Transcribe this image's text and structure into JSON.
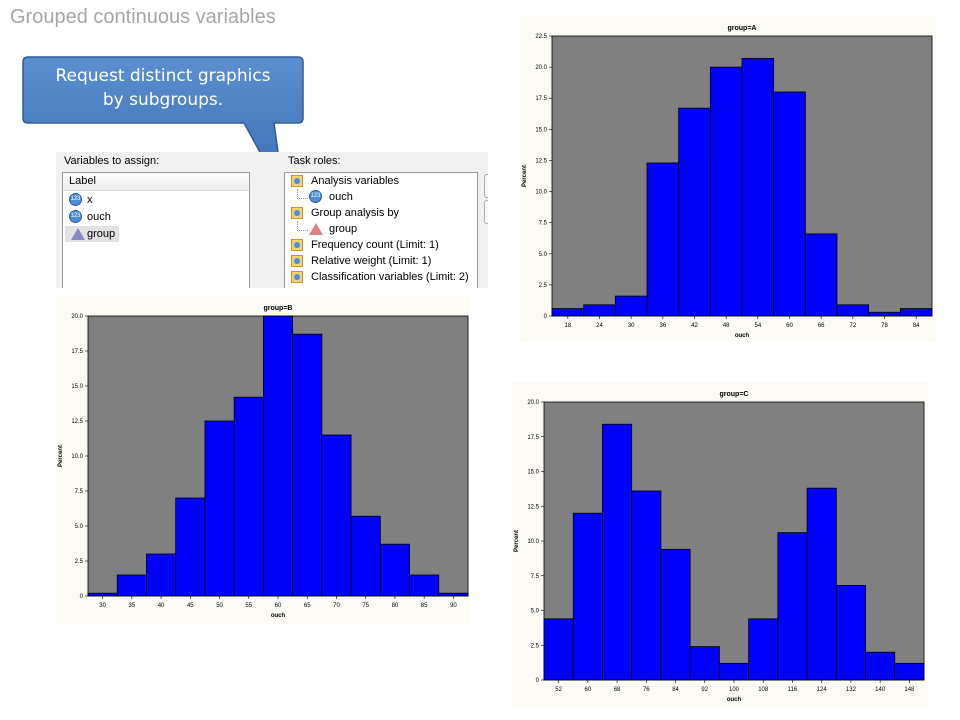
{
  "slide": {
    "title": "Grouped continuous variables",
    "callout": {
      "line1": "Request distinct graphics",
      "line2": "by subgroups."
    }
  },
  "dialog": {
    "vars_label": "Variables to assign:",
    "tasks_label": "Task roles:",
    "vars_header": "Label",
    "variables": [
      {
        "label": "x",
        "icon": "numeric-variable-icon"
      },
      {
        "label": "ouch",
        "icon": "numeric-variable-icon"
      },
      {
        "label": "group",
        "icon": "character-variable-icon"
      }
    ],
    "tasks": [
      {
        "label": "Analysis variables",
        "icon": "role-icon"
      },
      {
        "label": "ouch",
        "icon": "numeric-variable-icon",
        "sub": true
      },
      {
        "label": "Group analysis by",
        "icon": "role-icon"
      },
      {
        "label": "group",
        "icon": "character-variable-icon",
        "sub": true
      },
      {
        "label": "Frequency count  (Limit: 1)",
        "icon": "role-icon"
      },
      {
        "label": "Relative weight  (Limit: 1)",
        "icon": "role-icon"
      },
      {
        "label": "Classification variables  (Limit: 2)",
        "icon": "role-icon"
      }
    ]
  },
  "chart_data": [
    {
      "type": "bar",
      "title": "group=A",
      "xlabel": "ouch",
      "ylabel": "Percent",
      "ylim": [
        0,
        22.5
      ],
      "yticks": [
        "0",
        "2.5",
        "5.0",
        "7.5",
        "10.0",
        "12.5",
        "15.0",
        "17.5",
        "20.0",
        "22.5"
      ],
      "xticks": [
        "18",
        "24",
        "30",
        "36",
        "42",
        "48",
        "54",
        "60",
        "66",
        "72",
        "78",
        "84"
      ],
      "values": [
        0.6,
        0.9,
        1.6,
        12.3,
        16.7,
        20.0,
        20.7,
        18.0,
        6.6,
        0.9,
        0.3,
        0.6
      ],
      "grid": false,
      "colors": {
        "bar": "#0000ff",
        "plot_bg": "#808080",
        "edge": "#000000"
      }
    },
    {
      "type": "bar",
      "title": "group=B",
      "xlabel": "ouch",
      "ylabel": "Percent",
      "ylim": [
        0,
        20
      ],
      "yticks": [
        "0",
        "2.5",
        "5.0",
        "7.5",
        "10.0",
        "12.5",
        "15.0",
        "17.5",
        "20.0"
      ],
      "xticks": [
        "30",
        "35",
        "40",
        "45",
        "50",
        "55",
        "60",
        "65",
        "70",
        "75",
        "80",
        "85",
        "90"
      ],
      "values": [
        0.2,
        1.5,
        3.0,
        7.0,
        12.5,
        14.2,
        20.0,
        18.7,
        11.5,
        5.7,
        3.7,
        1.5,
        0.2
      ],
      "grid": false,
      "colors": {
        "bar": "#0000ff",
        "plot_bg": "#808080",
        "edge": "#000000"
      }
    },
    {
      "type": "bar",
      "title": "group=C",
      "xlabel": "ouch",
      "ylabel": "Percent",
      "ylim": [
        0,
        20
      ],
      "yticks": [
        "0",
        "2.5",
        "5.0",
        "7.5",
        "10.0",
        "12.5",
        "15.0",
        "17.5",
        "20.0"
      ],
      "xticks": [
        "52",
        "60",
        "68",
        "76",
        "84",
        "92",
        "100",
        "108",
        "116",
        "124",
        "132",
        "140",
        "148"
      ],
      "values": [
        4.4,
        12.0,
        18.4,
        13.6,
        9.4,
        2.4,
        1.2,
        4.4,
        10.6,
        13.8,
        6.8,
        2.0,
        1.2
      ],
      "grid": false,
      "colors": {
        "bar": "#0000ff",
        "plot_bg": "#808080",
        "edge": "#000000"
      }
    }
  ]
}
